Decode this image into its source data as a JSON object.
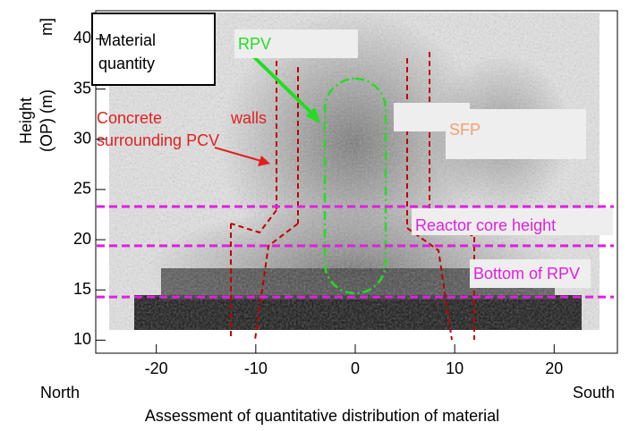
{
  "chart_data": {
    "type": "heatmap",
    "y_label_lines": [
      "Height",
      "(OP) (m)"
    ],
    "y_label_fragment": "m]",
    "x_label": "Assessment of quantitative distribution of material",
    "x_left_label": "North",
    "x_right_label": "South",
    "xlim": [
      -26,
      26
    ],
    "xticks": [
      -20,
      -10,
      0,
      10,
      20
    ],
    "ylim": [
      8.7,
      42.8
    ],
    "yticks": [
      10,
      15,
      20,
      25,
      30,
      35,
      40
    ],
    "reference_lines": [
      23.3,
      19.4,
      14.3
    ],
    "reference_color": "#e020e0",
    "annotations": {
      "material": [
        "Material",
        "quantity"
      ],
      "rpv": "RPV",
      "concrete": [
        "Concrete",
        "walls",
        "surrounding PCV"
      ],
      "sfp": "SFP",
      "core": "Reactor core height",
      "bottom": "Bottom of RPV"
    }
  }
}
